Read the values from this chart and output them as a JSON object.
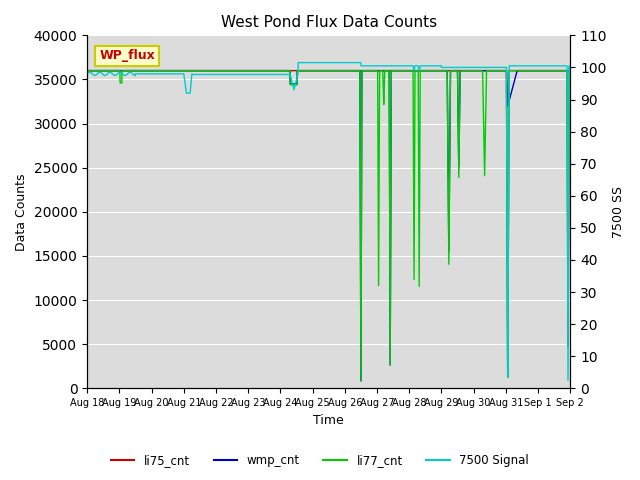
{
  "title": "West Pond Flux Data Counts",
  "ylabel_left": "Data Counts",
  "ylabel_right": "7500 SS",
  "xlabel": "Time",
  "annotation_text": "WP_flux",
  "annotation_color": "#cc0000",
  "annotation_bg": "#ffffcc",
  "annotation_border": "#cccc00",
  "ylim_left": [
    0,
    40000
  ],
  "ylim_right": [
    0,
    110
  ],
  "yticks_left": [
    0,
    5000,
    10000,
    15000,
    20000,
    25000,
    30000,
    35000,
    40000
  ],
  "yticks_right": [
    0,
    10,
    20,
    30,
    40,
    50,
    60,
    70,
    80,
    90,
    100,
    110
  ],
  "colors": {
    "li75_cnt": "#cc0000",
    "wmp_cnt": "#0000cc",
    "li77_cnt": "#00cc00",
    "signal7500": "#00cccc"
  },
  "legend_labels": [
    "li75_cnt",
    "wmp_cnt",
    "li77_cnt",
    "7500 Signal"
  ],
  "bg_color": "#dcdcdc",
  "fig_bg": "#ffffff",
  "linewidth": 1.0,
  "x_tick_labels": [
    "Aug 18",
    "Aug 19",
    "Aug 20",
    "Aug 21",
    "Aug 22",
    "Aug 23",
    "Aug 24",
    "Aug 25",
    "Aug 26",
    "Aug 27",
    "Aug 28",
    "Aug 29",
    "Aug 30",
    "Aug 31",
    "Sep 1",
    "Sep 2"
  ]
}
